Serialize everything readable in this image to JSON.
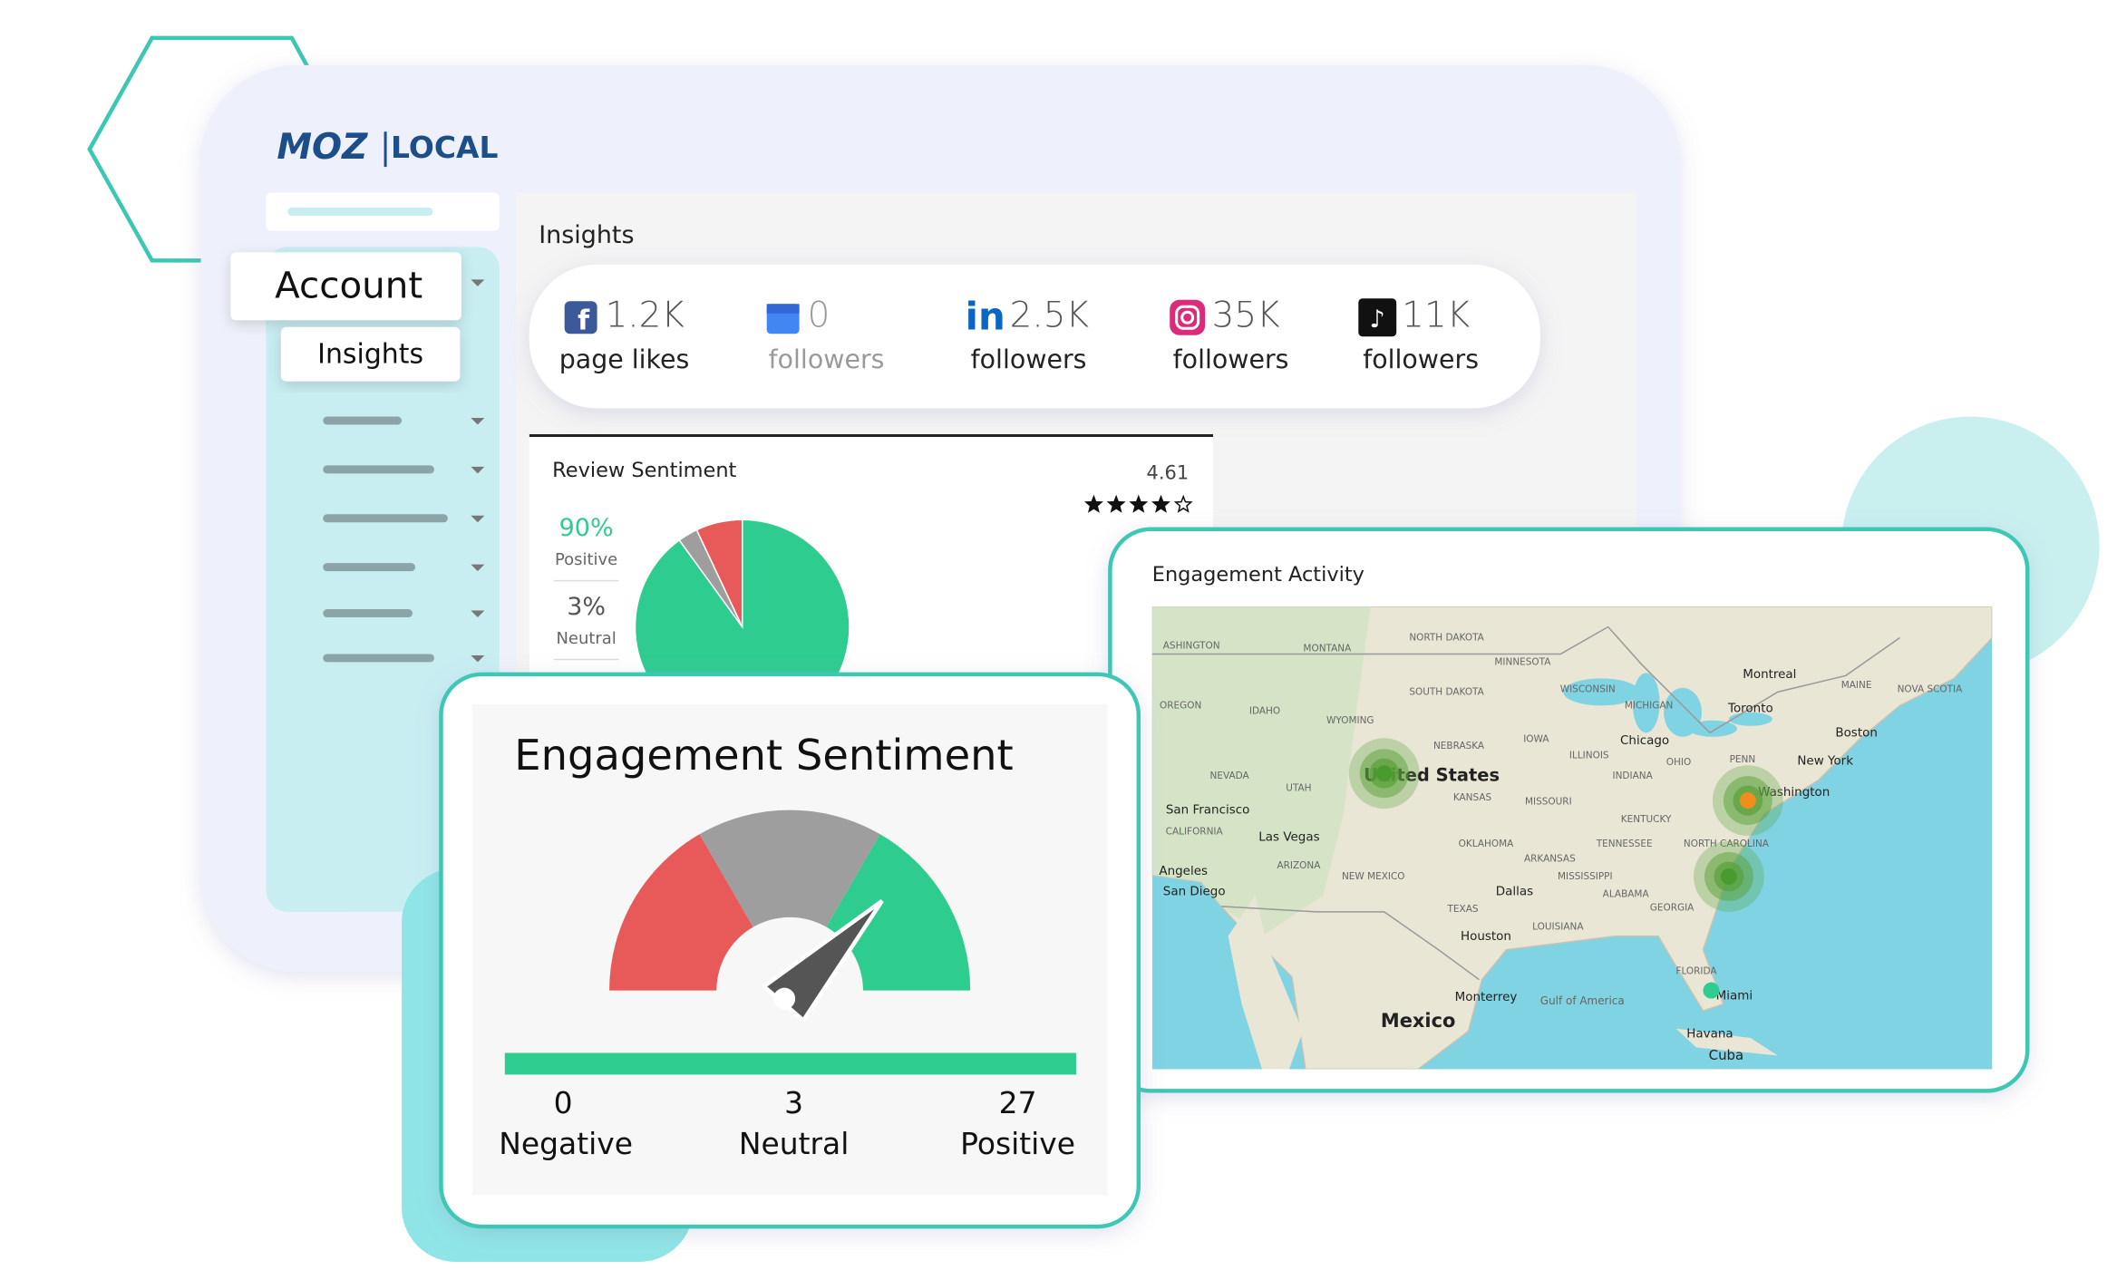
{
  "header": {
    "logo_left": "MOZ",
    "logo_right": "LOCAL"
  },
  "sidebar": {
    "account": "Account",
    "insights": "Insights"
  },
  "page_title": "Insights",
  "social_stats": [
    {
      "value": "1.2K",
      "label": "page likes"
    },
    {
      "value": "0",
      "label": "followers"
    },
    {
      "value": "2.5K",
      "label": "followers"
    },
    {
      "value": "35K",
      "label": "followers"
    },
    {
      "value": "11K",
      "label": "followers"
    }
  ],
  "review_sentiment": {
    "title": "Review Sentiment",
    "rating": "4.61",
    "slices": [
      {
        "value": 90,
        "color": "#2ecc8f"
      },
      {
        "value": 3,
        "color": "#9e9e9e"
      },
      {
        "value": 7,
        "color": "#e85a5a"
      }
    ],
    "legend": [
      {
        "value": "90%",
        "label": "Positive"
      },
      {
        "value": "3%",
        "label": "Neutral"
      }
    ]
  },
  "engagement_activity": {
    "title": "Engagement Activity",
    "map_labels": [
      "ASHINGTON",
      "MONTANA",
      "NORTH DAKOTA",
      "MINNESOTA",
      "OREGON",
      "IDAHO",
      "WYOMING",
      "SOUTH DAKOTA",
      "WISCONSIN",
      "MICHIGAN",
      "Montreal",
      "Toronto",
      "NEBRASKA",
      "IOWA",
      "Chicago",
      "NEVADA",
      "UTAH",
      "United States",
      "ILLINOIS",
      "INDIANA",
      "OHIO",
      "PENN",
      "New York",
      "Boston",
      "San Francisco",
      "KANSAS",
      "MISSOURI",
      "Washington",
      "KENTUCKY",
      "Las Vegas",
      "CALIFORNIA",
      "OKLAHOMA",
      "TENNESSEE",
      "ARIZONA",
      "ARKANSAS",
      "Angeles",
      "San Diego",
      "NEW MEXICO",
      "MISSISSIPPI",
      "ALABAMA",
      "Dallas",
      "GEORGIA",
      "TEXAS",
      "LOUISIANA",
      "Houston",
      "FLORIDA",
      "Miami",
      "Gulf of America",
      "Monterrey",
      "Mexico",
      "Havana",
      "Cuba",
      "NORTH CAROLINA",
      "MAINE",
      "NOVA SCOTIA"
    ]
  },
  "engagement_sentiment": {
    "title": "Engagement Sentiment",
    "counts": [
      {
        "value": 0,
        "label": "Negative"
      },
      {
        "value": 3,
        "label": "Neutral"
      },
      {
        "value": 27,
        "label": "Positive"
      }
    ]
  }
}
